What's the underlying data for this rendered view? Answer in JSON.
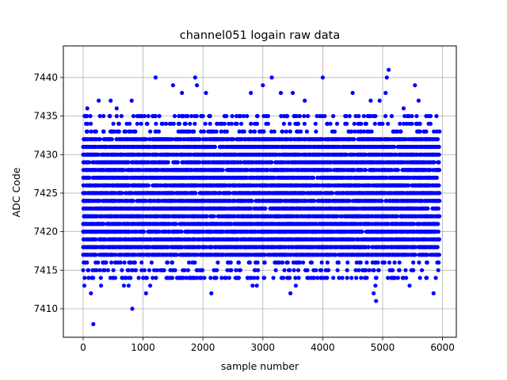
{
  "chart_data": {
    "type": "scatter",
    "title": "channel051 logain raw data",
    "xlabel": "sample number",
    "ylabel": "ADC Code",
    "xlim": [
      -330,
      6230
    ],
    "ylim": [
      7406.3,
      7444.1
    ],
    "xticks": [
      0,
      1000,
      2000,
      3000,
      4000,
      5000,
      6000
    ],
    "yticks": [
      7410,
      7415,
      7420,
      7425,
      7430,
      7435,
      7440
    ],
    "grid": true,
    "marker_color": "#0000ff",
    "series": [
      {
        "x_range": [
          0,
          5950
        ],
        "y_min": 7408,
        "y_max": 7441,
        "band_low": 7417,
        "band_high": 7432,
        "points": [
          {
            "x": 0,
            "y": 7421
          },
          {
            "x": 5,
            "y": 7429
          },
          {
            "x": 10,
            "y": 7432
          },
          {
            "x": 20,
            "y": 7413
          },
          {
            "x": 30,
            "y": 7418
          },
          {
            "x": 40,
            "y": 7422
          },
          {
            "x": 60,
            "y": 7433
          },
          {
            "x": 70,
            "y": 7436
          },
          {
            "x": 90,
            "y": 7414
          },
          {
            "x": 100,
            "y": 7420
          },
          {
            "x": 130,
            "y": 7412
          },
          {
            "x": 170,
            "y": 7408
          },
          {
            "x": 200,
            "y": 7415
          },
          {
            "x": 260,
            "y": 7437
          },
          {
            "x": 300,
            "y": 7413
          },
          {
            "x": 340,
            "y": 7435
          },
          {
            "x": 460,
            "y": 7437
          },
          {
            "x": 500,
            "y": 7414
          },
          {
            "x": 560,
            "y": 7436
          },
          {
            "x": 680,
            "y": 7413
          },
          {
            "x": 760,
            "y": 7413
          },
          {
            "x": 810,
            "y": 7437
          },
          {
            "x": 820,
            "y": 7410
          },
          {
            "x": 1050,
            "y": 7412
          },
          {
            "x": 1120,
            "y": 7413
          },
          {
            "x": 1210,
            "y": 7440
          },
          {
            "x": 1500,
            "y": 7439
          },
          {
            "x": 1600,
            "y": 7414
          },
          {
            "x": 1650,
            "y": 7438
          },
          {
            "x": 1870,
            "y": 7440
          },
          {
            "x": 1900,
            "y": 7439
          },
          {
            "x": 2050,
            "y": 7438
          },
          {
            "x": 2140,
            "y": 7412
          },
          {
            "x": 2200,
            "y": 7414
          },
          {
            "x": 2800,
            "y": 7438
          },
          {
            "x": 2830,
            "y": 7413
          },
          {
            "x": 2900,
            "y": 7413
          },
          {
            "x": 3000,
            "y": 7439
          },
          {
            "x": 3150,
            "y": 7440
          },
          {
            "x": 3300,
            "y": 7438
          },
          {
            "x": 3340,
            "y": 7414
          },
          {
            "x": 3460,
            "y": 7412
          },
          {
            "x": 3500,
            "y": 7438
          },
          {
            "x": 3550,
            "y": 7413
          },
          {
            "x": 3600,
            "y": 7414
          },
          {
            "x": 3700,
            "y": 7437
          },
          {
            "x": 4000,
            "y": 7440
          },
          {
            "x": 4050,
            "y": 7415
          },
          {
            "x": 4500,
            "y": 7438
          },
          {
            "x": 4800,
            "y": 7437
          },
          {
            "x": 4850,
            "y": 7412
          },
          {
            "x": 4880,
            "y": 7413
          },
          {
            "x": 4890,
            "y": 7411
          },
          {
            "x": 4950,
            "y": 7437
          },
          {
            "x": 5050,
            "y": 7438
          },
          {
            "x": 5070,
            "y": 7440
          },
          {
            "x": 5100,
            "y": 7441
          },
          {
            "x": 5350,
            "y": 7436
          },
          {
            "x": 5450,
            "y": 7413
          },
          {
            "x": 5540,
            "y": 7439
          },
          {
            "x": 5600,
            "y": 7437
          },
          {
            "x": 5850,
            "y": 7412
          },
          {
            "x": 5900,
            "y": 7435
          },
          {
            "x": 5950,
            "y": 7433
          }
        ]
      }
    ]
  }
}
